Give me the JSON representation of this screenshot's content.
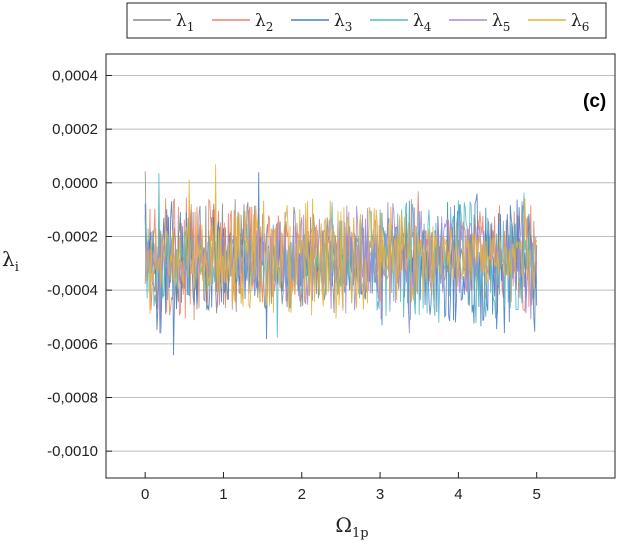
{
  "chart_data": {
    "type": "line",
    "title": "",
    "panel_label": "(c)",
    "xlabel": "Ω",
    "xlabel_sub": "1p",
    "ylabel": "λ",
    "ylabel_sub": "i",
    "xlim": [
      -0.5,
      6.0
    ],
    "ylim": [
      -0.0011,
      0.00048
    ],
    "x_ticks": [
      0,
      1,
      2,
      3,
      4,
      5
    ],
    "x_tick_labels": [
      "0",
      "1",
      "2",
      "3",
      "4",
      "5"
    ],
    "y_ticks": [
      -0.001,
      -0.0008,
      -0.0006,
      -0.0004,
      -0.0002,
      0.0,
      0.0002,
      0.0004
    ],
    "y_tick_labels": [
      "-0,0010",
      "-0,0008",
      "-0,0006",
      "-0,0004",
      "-0,0002",
      "0,0000",
      "0,0002",
      "0,0004"
    ],
    "grid": "horizontal",
    "legend_position": "top",
    "x_range": [
      0,
      5
    ],
    "samples_per_series": 400,
    "series": [
      {
        "name": "λ",
        "name_sub": "1",
        "color": "#8a8a8a",
        "center": -0.00028,
        "amplitude": 0.0002
      },
      {
        "name": "λ",
        "name_sub": "2",
        "color": "#e8846a",
        "center": -0.00028,
        "amplitude": 0.00022
      },
      {
        "name": "λ",
        "name_sub": "3",
        "color": "#4a7fc1",
        "center": -0.0003,
        "amplitude": 0.00025
      },
      {
        "name": "λ",
        "name_sub": "4",
        "color": "#56b9c4",
        "center": -0.0003,
        "amplitude": 0.00022
      },
      {
        "name": "λ",
        "name_sub": "5",
        "color": "#a78ad6",
        "center": -0.00029,
        "amplitude": 0.0002
      },
      {
        "name": "λ",
        "name_sub": "6",
        "color": "#e6b23a",
        "center": -0.00028,
        "amplitude": 0.00022
      }
    ]
  }
}
